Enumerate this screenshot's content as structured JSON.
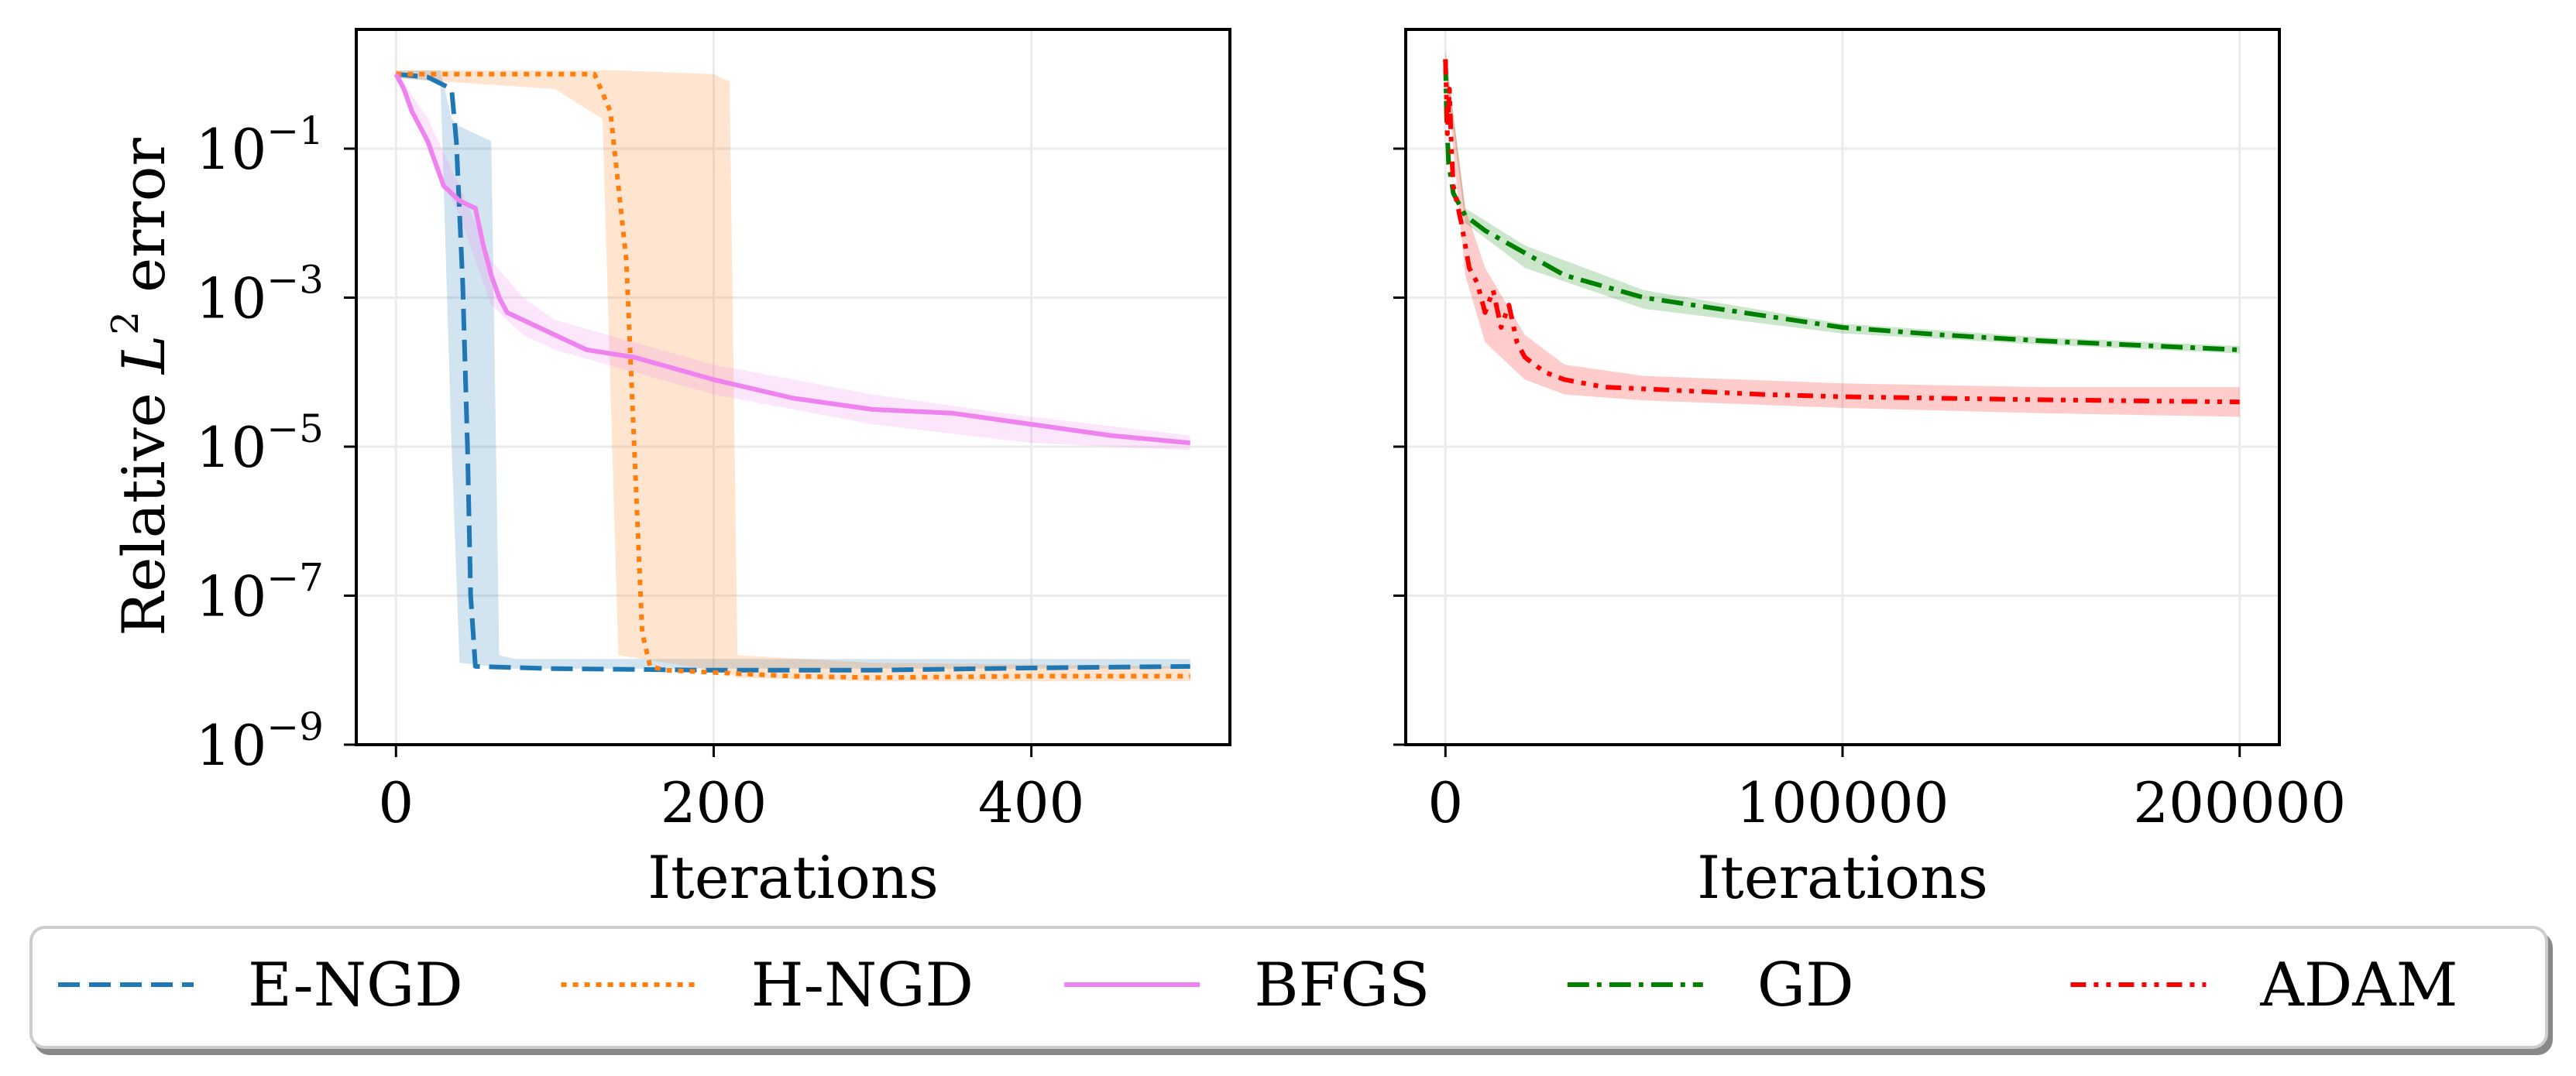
{
  "colors": {
    "E-NGD": "#1f77b4",
    "H-NGD": "#ff7f0e",
    "BFGS": "#ee82ee",
    "GD": "#008000",
    "ADAM": "#ff0000"
  },
  "legend": {
    "position": "bottom-center",
    "entries": [
      "E-NGD",
      "H-NGD",
      "BFGS",
      "GD",
      "ADAM"
    ]
  },
  "chart_data": [
    {
      "type": "line",
      "title": "",
      "xlabel": "Iterations",
      "ylabel_prefix": "Relative ",
      "ylabel_var": "L",
      "ylabel_sup": "2",
      "ylabel_suffix": " error",
      "yscale": "log",
      "xlim": [
        -25,
        525
      ],
      "ylim_log10": [
        -9,
        0.6
      ],
      "grid": true,
      "x_ticks": [
        0,
        200,
        400
      ],
      "x_tick_labels": [
        "0",
        "200",
        "400"
      ],
      "y_ticks_log10": [
        -1,
        -3,
        -5,
        -7,
        -9
      ],
      "y_tick_labels": [
        [
          "10",
          "−1"
        ],
        [
          "10",
          "−3"
        ],
        [
          "10",
          "−5"
        ],
        [
          "10",
          "−7"
        ],
        [
          "10",
          "−9"
        ]
      ],
      "series": [
        {
          "name": "E-NGD",
          "style": "dashed",
          "x": [
            0,
            20,
            35,
            38,
            42,
            45,
            47,
            50,
            100,
            200,
            300,
            400,
            500
          ],
          "log10_y": [
            0,
            -0.04,
            -0.2,
            -0.9,
            -2.8,
            -5.0,
            -7.0,
            -7.95,
            -7.98,
            -8.0,
            -8.0,
            -7.97,
            -7.95
          ],
          "band_x": [
            0,
            28,
            35,
            40,
            60,
            65,
            75,
            150,
            300,
            500
          ],
          "band_upper": [
            0.05,
            0.05,
            -0.6,
            -0.7,
            -0.9,
            -7.8,
            -7.85,
            -7.85,
            -7.85,
            -7.85
          ],
          "band_lower": [
            -0.05,
            -0.1,
            -5.0,
            -7.9,
            -7.95,
            -7.97,
            -7.98,
            -7.98,
            -7.98,
            -7.98
          ]
        },
        {
          "name": "H-NGD",
          "style": "dotted",
          "x": [
            0,
            100,
            125,
            135,
            140,
            145,
            150,
            155,
            160,
            170,
            250,
            300,
            400,
            500
          ],
          "log10_y": [
            0,
            0,
            0,
            -0.5,
            -1.5,
            -2.5,
            -5.0,
            -7.5,
            -7.95,
            -8.0,
            -8.08,
            -8.1,
            -8.08,
            -8.08
          ],
          "band_x": [
            0,
            30,
            100,
            130,
            140,
            200,
            210,
            215,
            300,
            500
          ],
          "band_upper": [
            0.05,
            0.05,
            0.05,
            0.05,
            0.05,
            0.0,
            -0.1,
            -7.8,
            -7.9,
            -7.95
          ],
          "band_lower": [
            -0.05,
            -0.1,
            -0.2,
            -0.6,
            -7.8,
            -8.0,
            -8.05,
            -8.1,
            -8.15,
            -8.15
          ]
        },
        {
          "name": "BFGS",
          "style": "solid",
          "x": [
            0,
            5,
            10,
            15,
            20,
            25,
            30,
            40,
            50,
            55,
            60,
            65,
            70,
            80,
            100,
            120,
            150,
            200,
            250,
            300,
            350,
            400,
            450,
            500
          ],
          "log10_y": [
            0,
            -0.2,
            -0.5,
            -0.7,
            -0.9,
            -1.2,
            -1.5,
            -1.7,
            -1.8,
            -2.3,
            -2.7,
            -3.0,
            -3.2,
            -3.3,
            -3.5,
            -3.7,
            -3.8,
            -4.1,
            -4.35,
            -4.5,
            -4.55,
            -4.7,
            -4.85,
            -4.95
          ],
          "band_x": [
            0,
            20,
            40,
            60,
            80,
            100,
            150,
            200,
            300,
            400,
            500
          ],
          "band_upper": [
            0.05,
            -0.6,
            -1.5,
            -2.5,
            -3.0,
            -3.3,
            -3.6,
            -3.9,
            -4.3,
            -4.6,
            -4.85
          ],
          "band_lower": [
            -0.05,
            -1.0,
            -1.9,
            -3.1,
            -3.5,
            -3.7,
            -4.0,
            -4.3,
            -4.7,
            -4.95,
            -5.05
          ]
        }
      ]
    },
    {
      "type": "line",
      "title": "",
      "xlabel": "Iterations",
      "ylabel": "",
      "yscale": "log",
      "xlim": [
        -10000,
        210000
      ],
      "ylim_log10": [
        -9,
        0.6
      ],
      "grid": true,
      "x_ticks": [
        0,
        100000,
        200000
      ],
      "x_tick_labels": [
        "0",
        "100000",
        "200000"
      ],
      "y_ticks_log10": [
        -1,
        -3,
        -5,
        -7,
        -9
      ],
      "series": [
        {
          "name": "GD",
          "style": "dashdot",
          "x": [
            0,
            300,
            800,
            2000,
            5000,
            10000,
            20000,
            30000,
            50000,
            75000,
            100000,
            125000,
            150000,
            175000,
            200000
          ],
          "log10_y": [
            0.2,
            -0.6,
            -1.2,
            -1.6,
            -1.9,
            -2.1,
            -2.4,
            -2.7,
            -3.0,
            -3.2,
            -3.4,
            -3.5,
            -3.58,
            -3.64,
            -3.7
          ],
          "band_x": [
            0,
            5000,
            20000,
            50000,
            100000,
            150000,
            200000
          ],
          "band_upper": [
            0.3,
            -1.8,
            -2.3,
            -2.9,
            -3.35,
            -3.53,
            -3.65
          ],
          "band_lower": [
            0.1,
            -2.0,
            -2.6,
            -3.15,
            -3.48,
            -3.63,
            -3.75
          ]
        },
        {
          "name": "ADAM",
          "style": "dashdotdot",
          "x": [
            0,
            500,
            1000,
            1500,
            2000,
            4000,
            6000,
            8000,
            10000,
            12000,
            14000,
            16000,
            18000,
            20000,
            25000,
            30000,
            40000,
            60000,
            80000,
            100000,
            150000,
            200000
          ],
          "log10_y": [
            0.2,
            -0.8,
            -0.2,
            -1.0,
            -1.5,
            -2.0,
            -2.6,
            -2.8,
            -3.2,
            -2.9,
            -3.4,
            -3.1,
            -3.6,
            -3.8,
            -4.0,
            -4.1,
            -4.2,
            -4.25,
            -4.3,
            -4.33,
            -4.37,
            -4.4
          ],
          "band_x": [
            0,
            5000,
            10000,
            20000,
            30000,
            50000,
            100000,
            150000,
            200000
          ],
          "band_upper": [
            0.3,
            -1.8,
            -2.6,
            -3.5,
            -3.9,
            -4.05,
            -4.15,
            -4.2,
            -4.2
          ],
          "band_lower": [
            0.1,
            -2.7,
            -3.6,
            -4.1,
            -4.3,
            -4.38,
            -4.48,
            -4.55,
            -4.6
          ]
        }
      ]
    }
  ]
}
